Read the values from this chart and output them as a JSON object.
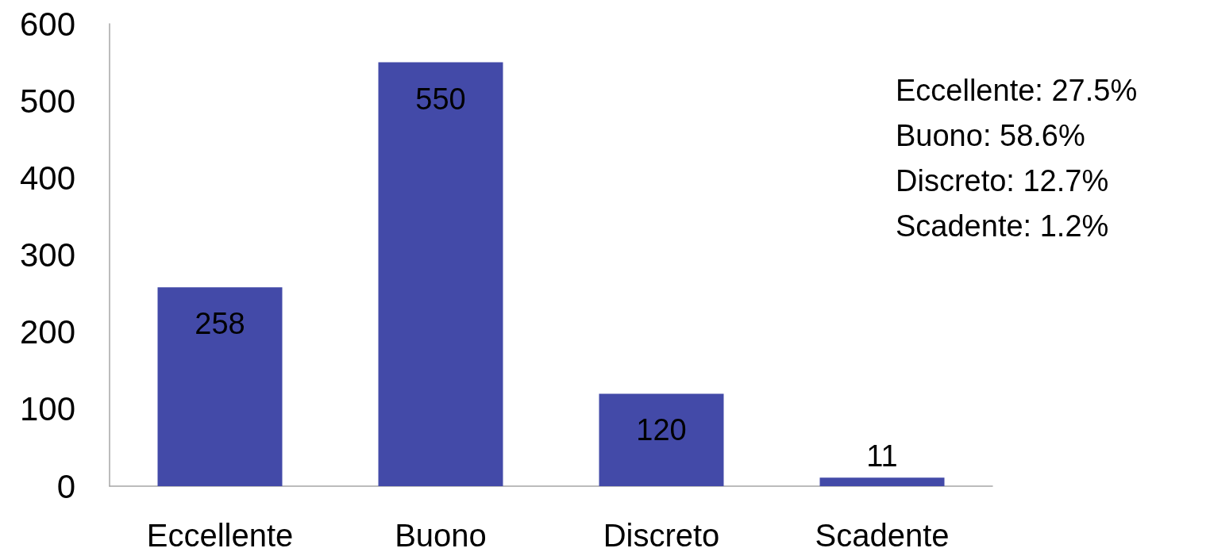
{
  "chart_data": {
    "type": "bar",
    "categories": [
      "Eccellente",
      "Buono",
      "Discreto",
      "Scadente"
    ],
    "values": [
      258,
      550,
      120,
      11
    ],
    "color": "#434aa8",
    "ylim": [
      0,
      600
    ],
    "yticks": [
      0,
      100,
      200,
      300,
      400,
      500,
      600
    ],
    "grid": false,
    "data_labels": true,
    "annotations": [
      "Eccellente: 27.5%",
      "Buono: 58.6%",
      "Discreto: 12.7%",
      "Scadente: 1.2%"
    ]
  }
}
